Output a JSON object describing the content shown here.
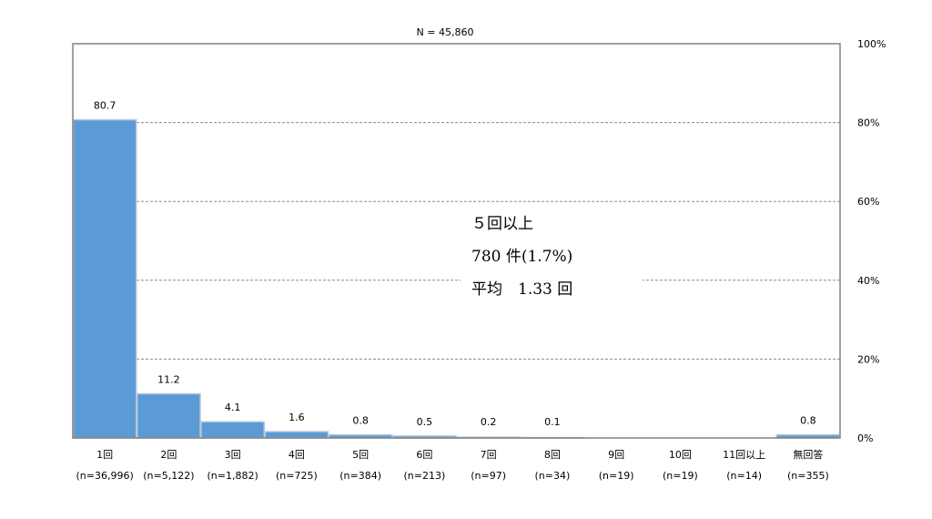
{
  "chart_data": {
    "type": "bar",
    "title": "N = 45,860",
    "categories": [
      "1回",
      "2回",
      "3回",
      "4回",
      "5回",
      "6回",
      "7回",
      "8回",
      "9回",
      "10回",
      "11回以上",
      "無回答"
    ],
    "counts": [
      "(n=36,996)",
      "(n=5,122)",
      "(n=1,882)",
      "(n=725)",
      "(n=384)",
      "(n=213)",
      "(n=97)",
      "(n=34)",
      "(n=19)",
      "(n=19)",
      "(n=14)",
      "(n=355)"
    ],
    "values": [
      80.7,
      11.2,
      4.1,
      1.6,
      0.8,
      0.5,
      0.2,
      0.1,
      0,
      0,
      0,
      0.8
    ],
    "data_labels": [
      "80.7",
      "11.2",
      "4.1",
      "1.6",
      "0.8",
      "0.5",
      "0.2",
      "0.1",
      "",
      "",
      "",
      "0.8"
    ],
    "ylim": [
      0,
      100
    ],
    "y_ticks": [
      "0%",
      "20%",
      "40%",
      "60%",
      "80%",
      "100%"
    ],
    "y_tick_values": [
      0,
      20,
      40,
      60,
      80,
      100
    ],
    "grid": true,
    "bar_color": "#5b9bd5",
    "bar_edge_color": "#b4c7dc"
  },
  "annotation": {
    "line1": "５回以上",
    "line2": "780 件(1.7%)",
    "line3": "平均　1.33 回"
  }
}
